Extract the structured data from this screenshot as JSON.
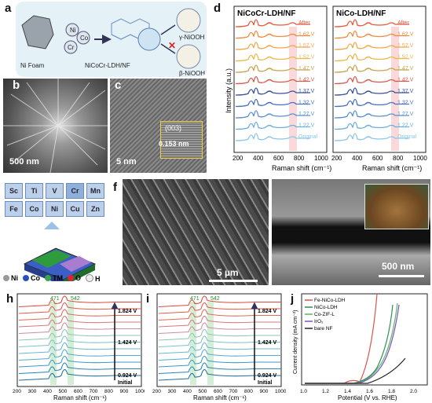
{
  "panels": {
    "a": {
      "label": "a",
      "ni_foam": "Ni Foam",
      "ni": "Ni",
      "co": "Co",
      "cr": "Cr",
      "product": "NiCoCr-LDH/NF",
      "gamma": "γ-NiOOH",
      "beta": "β-NiOOH"
    },
    "b": {
      "label": "b",
      "scale": "500 nm"
    },
    "c": {
      "label": "c",
      "scale": "5 nm",
      "plane": "(003)",
      "spacing": "0.153 nm"
    },
    "d": {
      "label": "d",
      "left_title": "NiCoCr-LDH/NF",
      "right_title": "NiCo-LDH/NF",
      "ylabel": "Intensity (a.u.)",
      "xlabel": "Raman shift (cm⁻¹)",
      "ticks": [
        "200",
        "400",
        "600",
        "800",
        "1000"
      ],
      "left_curves": [
        "After",
        "1.62 V",
        "1.57 V",
        "1.52 V",
        "1.47 V",
        "1.42 V",
        "1.37 V",
        "1.32 V",
        "1.27 V",
        "1.22 V",
        "Original"
      ],
      "right_curves": [
        "After",
        "1.62 V",
        "1.57 V",
        "1.52 V",
        "1.47 V",
        "1.42 V",
        "1.37 V",
        "1.32 V",
        "1.27 V",
        "1.22 V",
        "Original"
      ]
    },
    "e": {
      "label": "e",
      "elements": [
        "Sc",
        "Ti",
        "V",
        "Cr",
        "Mn",
        "Fe",
        "Co",
        "Ni",
        "Cu",
        "Zn"
      ],
      "legend": [
        "Ni",
        "Co",
        "TM",
        "O",
        "H"
      ]
    },
    "f": {
      "label": "f",
      "scale": "5 µm"
    },
    "g": {
      "label": "g",
      "scale": "500 nm"
    },
    "h": {
      "label": "h",
      "xlabel": "Raman shift (cm⁻¹)",
      "ticks": [
        "200",
        "300",
        "400",
        "500",
        "600",
        "700",
        "800",
        "900",
        "1000"
      ],
      "peaks": [
        "471",
        "542"
      ],
      "v_top": "1.824 V",
      "v_mid": "1.424 V",
      "v_low": "0.924 V",
      "v_init": "Initial"
    },
    "i": {
      "label": "i",
      "xlabel": "Raman shift (cm⁻¹)",
      "ticks": [
        "200",
        "300",
        "400",
        "500",
        "600",
        "700",
        "800",
        "900",
        "1000"
      ],
      "peaks": [
        "471",
        "542"
      ],
      "v_top": "1.824 V",
      "v_mid": "1.424 V",
      "v_low": "0.924 V",
      "v_init": "Initial"
    },
    "j": {
      "label": "j",
      "xlabel": "Potential (V vs. RHE)",
      "ylabel": "Current density (mA cm⁻²)",
      "ticks": [
        "1.0",
        "1.2",
        "1.4",
        "1.6",
        "1.8",
        "2.0"
      ],
      "legend": [
        "Fe-NiCo-LDH",
        "NiCo-LDH",
        "Co-ZIF-L",
        "IrO₂",
        "bare NF"
      ]
    }
  }
}
